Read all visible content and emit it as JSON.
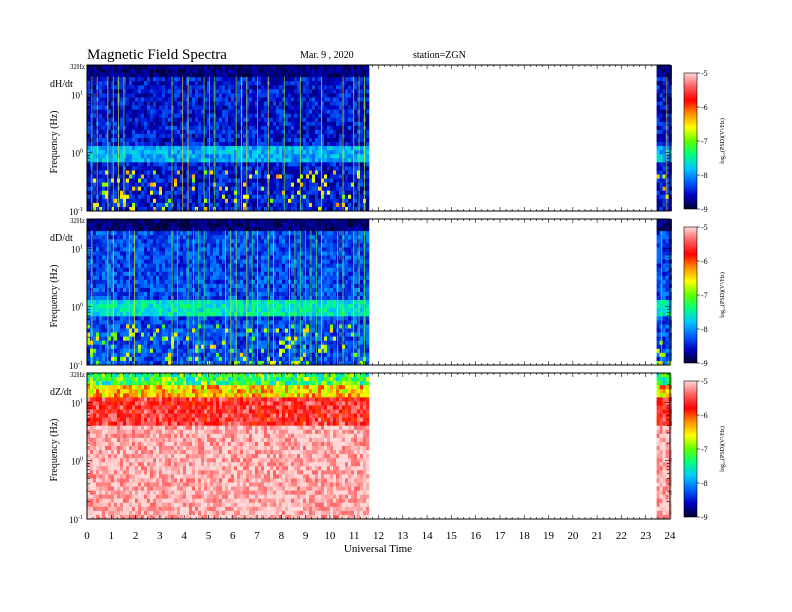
{
  "header": {
    "title": "Magnetic  Field  Spectra",
    "date": "Mar. 9  , 2020",
    "station": "station=ZGN"
  },
  "chart_data": {
    "type": "heatmap",
    "xlabel": "Universal  Time",
    "x_range": [
      0,
      24
    ],
    "x_ticks": [
      "0",
      "1",
      "2",
      "3",
      "4",
      "5",
      "6",
      "7",
      "8",
      "9",
      "10",
      "11",
      "12",
      "13",
      "14",
      "15",
      "16",
      "17",
      "18",
      "19",
      "20",
      "21",
      "22",
      "23",
      "24"
    ],
    "y_scale": "log",
    "y_range_hz": [
      0.1,
      32
    ],
    "y_top_label": "32Hz",
    "y_tick_labels": [
      {
        "base": "10",
        "exp": "1",
        "value": 10
      },
      {
        "base": "10",
        "exp": "0",
        "value": 1
      },
      {
        "base": "10",
        "exp": "-1",
        "value": 0.1
      }
    ],
    "ylabel": "Frequency  (Hz)",
    "colorbar": {
      "label": "log₁₀(PSD)(V²/Hz)",
      "ticks": [
        "-5",
        "-6",
        "-7",
        "-8",
        "-9"
      ],
      "range": [
        -9,
        -5
      ],
      "colors": [
        "#000030",
        "#0000c0",
        "#0060ff",
        "#00c8ff",
        "#00ff80",
        "#60ff00",
        "#ffff00",
        "#ff9000",
        "#ff0000",
        "#ff6060",
        "#ffd8d8"
      ]
    },
    "data_intervals_ut": [
      [
        0,
        11.6
      ],
      [
        23.45,
        24
      ]
    ],
    "panels": [
      {
        "label": "dH/dt",
        "background_level": -8.8,
        "mid_level": -8.2,
        "event_level": -7.0
      },
      {
        "label": "dD/dt",
        "background_level": -8.6,
        "mid_level": -7.9,
        "event_level": -7.2
      },
      {
        "label": "dZ/dt",
        "background_level": -5.3,
        "mid_level": -5.8,
        "event_level": -7.0
      }
    ]
  }
}
